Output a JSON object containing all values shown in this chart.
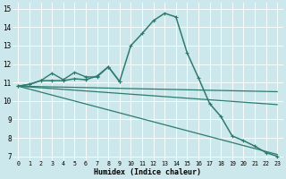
{
  "xlabel": "Humidex (Indice chaleur)",
  "bg_color": "#cce8ec",
  "grid_color": "#ffffff",
  "line_color": "#2d7b6e",
  "xlim": [
    -0.5,
    23.5
  ],
  "ylim": [
    6.8,
    15.3
  ],
  "xtick_labels": [
    "0",
    "1",
    "2",
    "3",
    "4",
    "5",
    "6",
    "7",
    "8",
    "9",
    "10",
    "11",
    "12",
    "13",
    "14",
    "15",
    "16",
    "17",
    "18",
    "19",
    "20",
    "21",
    "22",
    "23"
  ],
  "ytick_labels": [
    "7",
    "8",
    "9",
    "10",
    "11",
    "12",
    "13",
    "14",
    "15"
  ],
  "series": [
    {
      "x": [
        0,
        1,
        2,
        3,
        4,
        5,
        6,
        7,
        8,
        9,
        10,
        11,
        12,
        13,
        14,
        15,
        16,
        17,
        18,
        19,
        20,
        21,
        22,
        23
      ],
      "y": [
        10.8,
        10.9,
        11.1,
        11.1,
        11.1,
        11.2,
        11.15,
        11.35,
        11.85,
        11.05,
        13.0,
        13.65,
        14.35,
        14.75,
        14.55,
        12.6,
        11.25,
        9.85,
        9.15,
        8.1,
        7.85,
        7.55,
        7.2,
        7.0
      ],
      "marker": "+",
      "markersize": 3.5,
      "linestyle": "-",
      "linewidth": 1.1
    },
    {
      "x": [
        0,
        1,
        2,
        3,
        4,
        5,
        6,
        7,
        8,
        9
      ],
      "y": [
        10.8,
        10.9,
        11.1,
        11.5,
        11.15,
        11.55,
        11.3,
        11.3,
        11.85,
        11.05
      ],
      "marker": "+",
      "markersize": 3.5,
      "linestyle": "-",
      "linewidth": 1.0
    },
    {
      "x": [
        0,
        23
      ],
      "y": [
        10.8,
        10.5
      ],
      "marker": null,
      "markersize": 0,
      "linestyle": "-",
      "linewidth": 0.9
    },
    {
      "x": [
        0,
        23
      ],
      "y": [
        10.8,
        9.8
      ],
      "marker": null,
      "markersize": 0,
      "linestyle": "-",
      "linewidth": 0.9
    },
    {
      "x": [
        0,
        23
      ],
      "y": [
        10.8,
        7.1
      ],
      "marker": null,
      "markersize": 0,
      "linestyle": "-",
      "linewidth": 0.9
    }
  ]
}
